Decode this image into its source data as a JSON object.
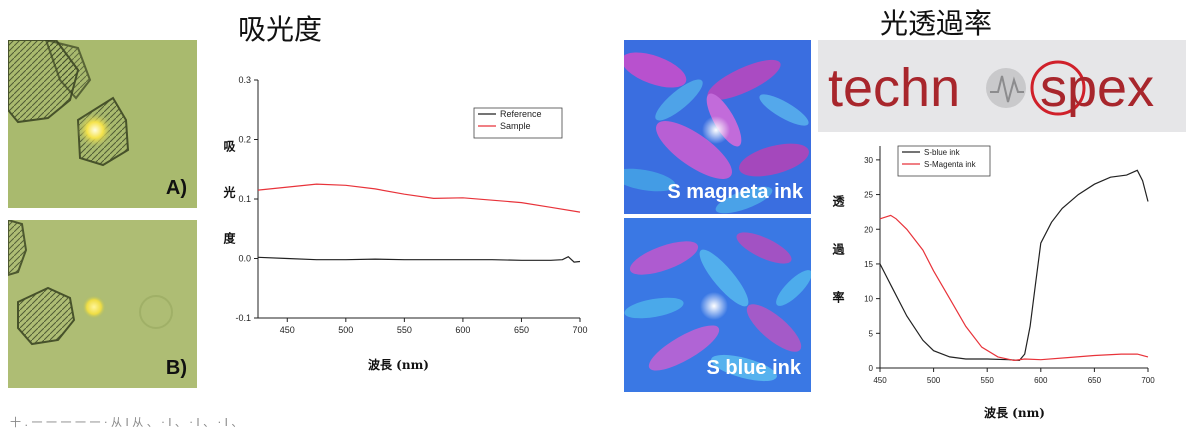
{
  "left_title": "吸光度",
  "right_title": "光透過率",
  "micrographs": [
    {
      "label": "A)"
    },
    {
      "label": "B)"
    }
  ],
  "ink_images": [
    {
      "label": "S magneta ink"
    },
    {
      "label": "S blue ink"
    }
  ],
  "logo": {
    "text": "technospex"
  },
  "footer_text": "十 . 一 一 一 一 一 · 从 I 从 、 · I 、 · I 、 · I 、",
  "colors": {
    "sample": "#e8333a",
    "reference": "#222222",
    "micro_bg": "#a7b86a"
  },
  "chart_data": [
    {
      "type": "line",
      "ylabel": "吸光度",
      "xlabel": "波長 (nm)",
      "xlim": [
        425,
        700
      ],
      "ylim": [
        -0.1,
        0.3
      ],
      "xticks": [
        "450",
        "500",
        "550",
        "600",
        "650",
        "700"
      ],
      "yticks": [
        "-0.1",
        "0.0",
        "0.1",
        "0.2",
        "0.3"
      ],
      "legend_position": "top-right",
      "series": [
        {
          "name": "Reference",
          "color": "#222222",
          "x": [
            425,
            450,
            475,
            500,
            525,
            550,
            575,
            600,
            625,
            650,
            675,
            685,
            690,
            695,
            700
          ],
          "y": [
            0.002,
            0.0,
            -0.002,
            -0.002,
            -0.001,
            -0.002,
            -0.002,
            -0.002,
            -0.002,
            -0.003,
            -0.003,
            -0.002,
            0.003,
            -0.006,
            -0.005
          ]
        },
        {
          "name": "Sample",
          "color": "#e8333a",
          "x": [
            425,
            450,
            475,
            500,
            525,
            550,
            575,
            600,
            625,
            650,
            675,
            700
          ],
          "y": [
            0.115,
            0.12,
            0.125,
            0.123,
            0.117,
            0.108,
            0.101,
            0.102,
            0.098,
            0.094,
            0.086,
            0.078
          ]
        }
      ]
    },
    {
      "type": "line",
      "ylabel": "透過率",
      "xlabel": "波長 (nm)",
      "xlim": [
        450,
        700
      ],
      "ylim": [
        0,
        32
      ],
      "xticks": [
        "450",
        "500",
        "550",
        "600",
        "650",
        "700"
      ],
      "yticks": [
        "0",
        "5",
        "10",
        "15",
        "20",
        "25",
        "30"
      ],
      "legend_position": "top-left",
      "series": [
        {
          "name": "S-blue ink",
          "color": "#222222",
          "x": [
            450,
            460,
            475,
            490,
            500,
            515,
            530,
            550,
            570,
            580,
            585,
            590,
            595,
            600,
            610,
            620,
            635,
            650,
            665,
            680,
            690,
            695,
            700
          ],
          "y": [
            15,
            12,
            7.5,
            4,
            2.5,
            1.6,
            1.3,
            1.3,
            1.2,
            1.1,
            2,
            6,
            12,
            18,
            21,
            23,
            25,
            26.5,
            27.5,
            27.8,
            28.5,
            27,
            24
          ]
        },
        {
          "name": "S-Magenta ink",
          "color": "#e8333a",
          "x": [
            450,
            460,
            465,
            475,
            490,
            500,
            515,
            530,
            545,
            560,
            575,
            585,
            600,
            625,
            650,
            675,
            690,
            700
          ],
          "y": [
            21.5,
            22,
            21.5,
            20,
            17,
            14,
            10,
            6,
            3,
            1.6,
            1.1,
            1.3,
            1.2,
            1.5,
            1.8,
            2,
            2,
            1.6
          ]
        }
      ]
    }
  ]
}
